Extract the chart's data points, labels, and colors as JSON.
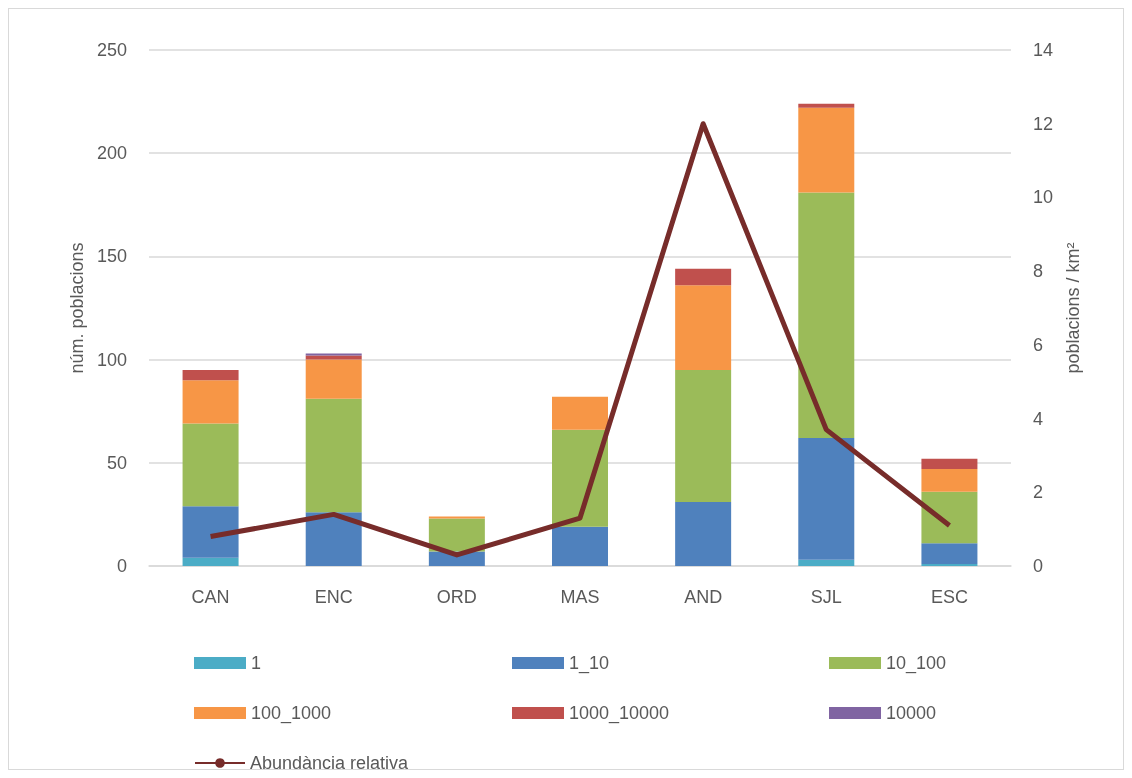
{
  "chart_data": {
    "type": "bar",
    "stacked": true,
    "categories": [
      "CAN",
      "ENC",
      "ORD",
      "MAS",
      "AND",
      "SJL",
      "ESC"
    ],
    "ylabel": "núm. poblacions",
    "y2label": "poblacions / km²",
    "ylim": [
      0,
      250
    ],
    "yticks": [
      0,
      50,
      100,
      150,
      200,
      250
    ],
    "y2lim": [
      0,
      14
    ],
    "y2ticks": [
      0,
      2,
      4,
      6,
      8,
      10,
      12,
      14
    ],
    "grid": "y",
    "legend": "bottom",
    "series": [
      {
        "name": "1",
        "color": "#4bacc6",
        "values": [
          4,
          0,
          0,
          0,
          0,
          3,
          1
        ]
      },
      {
        "name": "1_10",
        "color": "#4f81bd",
        "values": [
          25,
          26,
          7,
          19,
          31,
          59,
          10
        ]
      },
      {
        "name": "10_100",
        "color": "#9bbb59",
        "values": [
          40,
          55,
          16,
          47,
          64,
          119,
          25
        ]
      },
      {
        "name": "100_1000",
        "color": "#f79646",
        "values": [
          21,
          19,
          1,
          16,
          41,
          41,
          11
        ]
      },
      {
        "name": "1000_10000",
        "color": "#c0504d",
        "values": [
          5,
          2,
          0,
          0,
          8,
          2,
          5
        ]
      },
      {
        "name": "10000",
        "color": "#8064a2",
        "values": [
          0,
          1,
          0,
          0,
          0,
          0,
          0
        ]
      },
      {
        "name": "Abundància relativa",
        "type": "line",
        "axis": "y2",
        "color": "#772c2a",
        "marker": "none",
        "values": [
          0.8,
          1.4,
          0.3,
          1.3,
          12.0,
          3.7,
          1.1
        ]
      }
    ]
  }
}
